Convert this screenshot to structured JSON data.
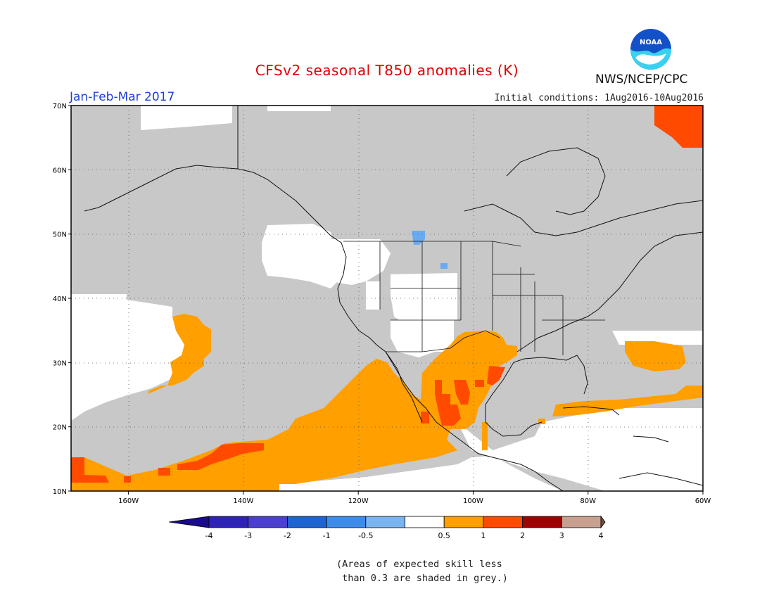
{
  "title": "CFSv2 seasonal T850 anomalies (K)",
  "season": "Jan-Feb-Mar 2017",
  "initial_conditions": "Initial conditions: 1Aug2016-10Aug2016",
  "agency": "NWS/NCEP/CPC",
  "logo_text": "NOAA",
  "note": "(Areas of expected skill less\n than 0.3 are shaded in grey.)",
  "map": {
    "lon_range": [
      -170,
      -60
    ],
    "lat_range": [
      10,
      70
    ],
    "lon_ticks": [
      {
        "value": -160,
        "label": "160W"
      },
      {
        "value": -140,
        "label": "140W"
      },
      {
        "value": -120,
        "label": "120W"
      },
      {
        "value": -100,
        "label": "100W"
      },
      {
        "value": -80,
        "label": "80W"
      },
      {
        "value": -60,
        "label": "60W"
      }
    ],
    "lat_ticks": [
      {
        "value": 10,
        "label": "10N"
      },
      {
        "value": 20,
        "label": "20N"
      },
      {
        "value": 30,
        "label": "30N"
      },
      {
        "value": 40,
        "label": "40N"
      },
      {
        "value": 50,
        "label": "50N"
      },
      {
        "value": 60,
        "label": "60N"
      },
      {
        "value": 70,
        "label": "70N"
      }
    ]
  },
  "colorbar": {
    "labels": [
      "-4",
      "-3",
      "-2",
      "-1",
      "-0.5",
      "0.5",
      "1",
      "2",
      "3",
      "4"
    ],
    "colors": {
      "below_-4": "#1a0a8c",
      "-4_-3": "#2e22b8",
      "-3_-2": "#4a3fd0",
      "-2_-1": "#1e64d0",
      "-1_-0.5_a": "#3d8de8",
      "-0.5_low": "#7ab4f0",
      "neutral": "#ffffff",
      "0.5_1": "#ff9f00",
      "1_2": "#ff4a00",
      "2_3": "#a00000",
      "3_4": "#c8a090",
      "above_4": "#7a4a3a"
    }
  },
  "colors": {
    "grey_skill": "#c8c8c8",
    "orange": "#ff9f00",
    "red_orange": "#ff4a00",
    "light_blue": "#6aaaf0",
    "white": "#ffffff"
  }
}
